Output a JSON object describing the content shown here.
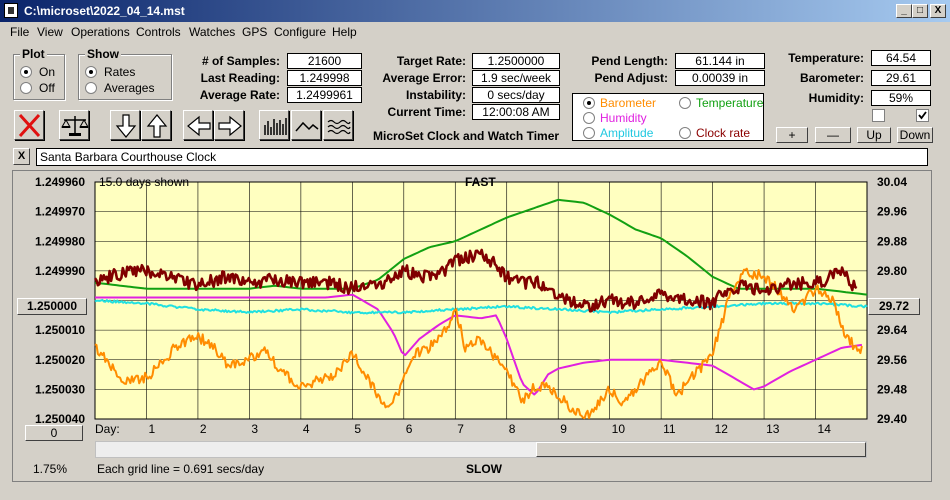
{
  "window": {
    "title": "C:\\microset\\2022_04_14.mst",
    "minimize": "_",
    "maximize": "□",
    "close": "X"
  },
  "menu": [
    "File",
    "View",
    "Operations",
    "Controls",
    "Watches",
    "GPS",
    "Configure",
    "Help"
  ],
  "plot_group": {
    "title": "Plot",
    "on": "On",
    "off": "Off",
    "selected": "On"
  },
  "show_group": {
    "title": "Show",
    "rates": "Rates",
    "averages": "Averages",
    "selected": "Rates"
  },
  "stats": {
    "samples_label": "# of Samples:",
    "samples": "21600",
    "last_reading_label": "Last Reading:",
    "last_reading": "1.249998",
    "average_rate_label": "Average Rate:",
    "average_rate": "1.2499961",
    "target_rate_label": "Target Rate:",
    "target_rate": "1.2500000",
    "average_error_label": "Average Error:",
    "average_error": "1.9 sec/week",
    "instability_label": "Instability:",
    "instability": "0 secs/day",
    "current_time_label": "Current Time:",
    "current_time": "12:00:08 AM",
    "pend_length_label": "Pend Length:",
    "pend_length": "61.144 in",
    "pend_adjust_label": "Pend Adjust:",
    "pend_adjust": "0.00039 in",
    "temperature_label": "Temperature:",
    "temperature": "64.54",
    "barometer_label": "Barometer:",
    "barometer": "29.61",
    "humidity_label": "Humidity:",
    "humidity": "59%"
  },
  "app_caption": "MicroSet Clock and Watch Timer",
  "sensor_options": {
    "barometer": "Barometer",
    "temperature": "Temperature",
    "humidity": "Humidity",
    "amplitude": "Amplitude",
    "clock_rate": "Clock rate",
    "selected": "Barometer"
  },
  "adjust_buttons": {
    "plus": "+",
    "minus": "—",
    "up": "Up",
    "down": "Down"
  },
  "toolbar_icons": [
    "close-x-icon",
    "balance-scale-icon",
    "arrow-down-icon",
    "arrow-up-icon",
    "arrow-left-icon",
    "arrow-right-icon",
    "bar-graph-icon",
    "line-graph-icon",
    "wave-graph-icon"
  ],
  "clock_name": {
    "close": "X",
    "value": "Santa Barbara Courthouse Clock"
  },
  "chart_panel": {
    "days_shown": "15.0 days shown",
    "center_left": "1.250000",
    "center_right": "29.72",
    "zoom_left": "0",
    "percent": "1.75%",
    "grid_note": "Each grid line = 0.691 secs/day"
  },
  "colors": {
    "rate": "#800000",
    "barometer": "#ff8c00",
    "temperature": "#12a012",
    "humidity": "#e020e0",
    "amplitude": "#20e0e0",
    "clock_rate": "#8b0000",
    "plot_bg": "#ffffc0"
  },
  "chart_data": {
    "type": "line",
    "top_label": "FAST",
    "bottom_label": "SLOW",
    "x_axis_title": "Day:",
    "x_ticks": [
      "1",
      "2",
      "3",
      "4",
      "5",
      "6",
      "7",
      "8",
      "9",
      "10",
      "11",
      "12",
      "13",
      "14"
    ],
    "xlim": [
      0,
      15
    ],
    "y_left_ticks": [
      "1.249960",
      "1.249970",
      "1.249980",
      "1.249990",
      "1.250000",
      "1.250010",
      "1.250020",
      "1.250030",
      "1.250040"
    ],
    "ylim_left": [
      1.24996,
      1.25004
    ],
    "y_right_ticks": [
      "30.04",
      "29.96",
      "29.88",
      "29.80",
      "29.72",
      "29.64",
      "29.56",
      "29.48",
      "29.40"
    ],
    "ylim_right": [
      29.4,
      30.04
    ],
    "series": [
      {
        "name": "Temperature",
        "color": "#12a012",
        "axis": "left",
        "x": [
          0,
          0.5,
          1,
          1.5,
          2,
          2.5,
          3,
          3.5,
          4,
          4.5,
          5,
          5.5,
          6,
          6.5,
          7,
          7.5,
          8,
          8.5,
          9,
          9.5,
          10,
          10.5,
          11,
          11.5,
          12,
          12.5,
          13,
          13.5,
          14,
          14.5,
          15
        ],
        "values": [
          1.249994,
          1.249995,
          1.249996,
          1.249996,
          1.249996,
          1.249996,
          1.249996,
          1.249995,
          1.249996,
          1.249996,
          1.249996,
          1.249993,
          1.249986,
          1.249982,
          1.24998,
          1.249976,
          1.249972,
          1.249969,
          1.249966,
          1.249967,
          1.249971,
          1.249976,
          1.249979,
          1.249985,
          1.249992,
          1.249996,
          1.249996,
          1.249996,
          1.249996,
          1.249997,
          1.249998
        ]
      },
      {
        "name": "Humidity",
        "color": "#e020e0",
        "axis": "left",
        "x": [
          0,
          0.5,
          1,
          1.5,
          2,
          2.5,
          3,
          3.5,
          4,
          4.5,
          5,
          5.5,
          5.8,
          6,
          6.3,
          6.7,
          7,
          7.5,
          7.8,
          8,
          8.3,
          8.55,
          8.8,
          9,
          9.5,
          10,
          10.5,
          11,
          11.5,
          12,
          12.5,
          12.8,
          13,
          13.5,
          14,
          14.5,
          14.9
        ],
        "values": [
          1.249999,
          1.249999,
          1.249999,
          1.249999,
          1.249999,
          1.249999,
          1.249999,
          1.249999,
          1.249999,
          1.249999,
          1.249998,
          1.250003,
          1.250011,
          1.250019,
          1.250013,
          1.250008,
          1.250005,
          1.250006,
          1.250005,
          1.250013,
          1.250028,
          1.250032,
          1.250025,
          1.250023,
          1.250021,
          1.25002,
          1.25002,
          1.25002,
          1.250021,
          1.250022,
          1.250027,
          1.25003,
          1.250029,
          1.250024,
          1.25002,
          1.250016,
          1.250015
        ]
      },
      {
        "name": "Amplitude",
        "color": "#20e0e0",
        "axis": "left",
        "x": [
          0,
          1,
          2,
          3,
          4,
          5,
          6,
          7,
          8,
          9,
          10,
          11,
          12,
          13,
          14,
          15
        ],
        "values": [
          1.25,
          1.250001,
          1.250003,
          1.250004,
          1.250003,
          1.250004,
          1.250004,
          1.250003,
          1.250002,
          1.250003,
          1.250004,
          1.250003,
          1.250002,
          1.250001,
          1.250001,
          1.250002
        ]
      },
      {
        "name": "Barometer",
        "color": "#ff8c00",
        "axis": "left",
        "x": [
          0,
          0.3,
          0.6,
          1,
          1.3,
          1.6,
          2,
          2.3,
          2.6,
          3,
          3.3,
          3.6,
          4,
          4.3,
          4.6,
          5,
          5.3,
          5.6,
          5.9,
          6.2,
          6.5,
          6.8,
          7,
          7.2,
          7.5,
          7.8,
          8,
          8.3,
          8.5,
          8.7,
          9,
          9.3,
          9.6,
          10,
          10.3,
          10.6,
          11,
          11.3,
          11.6,
          12,
          12.3,
          12.6,
          13,
          13.3,
          13.6,
          14,
          14.3,
          14.6,
          14.9
        ],
        "values": [
          1.250016,
          1.250022,
          1.250027,
          1.250026,
          1.250021,
          1.250015,
          1.250012,
          1.250016,
          1.250022,
          1.25002,
          1.250016,
          1.250024,
          1.250029,
          1.250027,
          1.250026,
          1.250018,
          1.250026,
          1.250036,
          1.250031,
          1.250018,
          1.250016,
          1.25001,
          1.250003,
          1.250016,
          1.250013,
          1.25002,
          1.250024,
          1.250034,
          1.25003,
          1.250029,
          1.250032,
          1.250037,
          1.250039,
          1.25003,
          1.250035,
          1.250028,
          1.250021,
          1.250032,
          1.250026,
          1.250018,
          1.25,
          1.24999,
          1.249992,
          1.249997,
          1.250003,
          1.249996,
          1.249999,
          1.250013,
          1.250017
        ]
      },
      {
        "name": "Clock rate",
        "color": "#800000",
        "axis": "left",
        "x": [
          0,
          0.5,
          1,
          1.5,
          2,
          2.5,
          3,
          3.5,
          4,
          4.5,
          5,
          5.3,
          5.6,
          6,
          6.4,
          6.8,
          7,
          7.2,
          7.5,
          7.8,
          8,
          8.3,
          8.6,
          9,
          9.3,
          9.6,
          10,
          10.5,
          11,
          11.5,
          12,
          12.3,
          12.6,
          13,
          13.4,
          13.8,
          14.2,
          14.5,
          14.8
        ],
        "values": [
          1.249993,
          1.249991,
          1.24999,
          1.249992,
          1.249995,
          1.249992,
          1.249994,
          1.249993,
          1.249994,
          1.249994,
          1.249996,
          1.249994,
          1.249994,
          1.24999,
          1.249992,
          1.24999,
          1.249986,
          1.249986,
          1.249984,
          1.249988,
          1.249992,
          1.249994,
          1.249994,
          1.249998,
          1.250001,
          1.250002,
          1.25,
          1.250001,
          1.249998,
          1.25,
          1.250001,
          1.249996,
          1.249995,
          1.249997,
          1.249995,
          1.249994,
          1.249993,
          1.24999,
          1.249996
        ]
      }
    ]
  }
}
